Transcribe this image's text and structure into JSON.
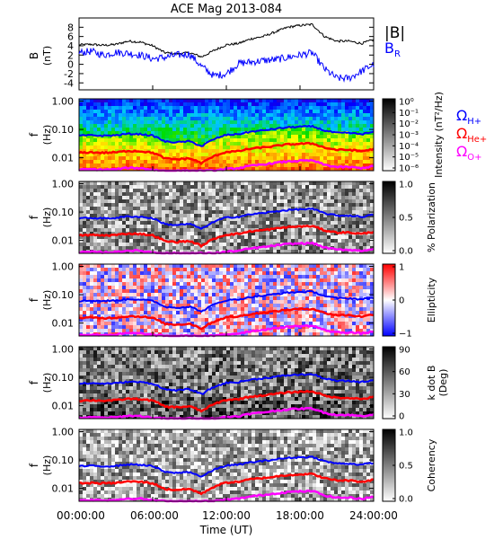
{
  "title": "ACE Mag 2013-084",
  "x_axis": {
    "label": "Time (UT)",
    "ticks": [
      "00:00:00",
      "06:00:00",
      "12:00:00",
      "18:00:00",
      "24:00:00"
    ],
    "range_hours": [
      0,
      24
    ]
  },
  "colors": {
    "b_total": "#000000",
    "b_r": "#0000ff",
    "h_plus": "#0000ff",
    "he_plus": "#ff0000",
    "o_plus": "#ff00ff"
  },
  "chart_data": [
    {
      "type": "line",
      "title": "ACE Mag 2013-084",
      "ylabel": "B",
      "yunit": "(nT)",
      "ylim": [
        -5.5,
        10
      ],
      "yticks": [
        "-4",
        "-2",
        "0",
        "2",
        "4",
        "6",
        "8"
      ],
      "x": [
        0,
        1,
        2,
        3,
        4,
        5,
        6,
        7,
        8,
        9,
        10,
        11,
        12,
        13,
        14,
        15,
        16,
        17,
        18,
        19,
        20,
        21,
        22,
        23,
        24
      ],
      "series": [
        {
          "name": "|B|",
          "values": [
            4.2,
            4.3,
            4.1,
            4.3,
            5.0,
            4.8,
            4.0,
            2.5,
            2.3,
            2.5,
            1.6,
            3.0,
            4.2,
            4.5,
            5.5,
            6.0,
            7.0,
            8.0,
            8.4,
            8.6,
            6.0,
            5.0,
            5.0,
            4.5,
            5.3
          ]
        },
        {
          "name": "B_R",
          "values": [
            2.5,
            2.8,
            2.0,
            2.6,
            2.4,
            2.0,
            1.2,
            1.5,
            2.0,
            2.2,
            -0.5,
            -2.5,
            -2.0,
            0.2,
            0.5,
            0.8,
            1.0,
            1.5,
            2.0,
            2.5,
            -1.0,
            -3.0,
            -3.0,
            -1.5,
            0.0
          ]
        }
      ],
      "legend": [
        "|B|",
        "B_R"
      ],
      "legend_placement": "right"
    },
    {
      "type": "heatmap",
      "ylabel": "f",
      "yunit": "(Hz)",
      "yticks": [
        "0.01",
        "0.10",
        "1.00"
      ],
      "colorbar_label": "Intensity (nT²/Hz)",
      "colorbar_ticks": [
        "10⁰",
        "10⁻¹",
        "10⁻²",
        "10⁻³",
        "10⁻⁴",
        "10⁻⁵",
        "10⁻⁶"
      ],
      "legend": [
        "Ω_H+",
        "Ω_He+",
        "Ω_O+"
      ]
    },
    {
      "type": "heatmap",
      "ylabel": "f",
      "yunit": "(Hz)",
      "yticks": [
        "0.01",
        "0.10",
        "1.00"
      ],
      "colorbar_label": "% Polarization",
      "colorbar_ticks": [
        "1.0",
        "0.5",
        "0.0"
      ]
    },
    {
      "type": "heatmap",
      "ylabel": "f",
      "yunit": "(Hz)",
      "yticks": [
        "0.01",
        "0.10",
        "1.00"
      ],
      "colorbar_label": "Ellipticity",
      "colorbar_ticks": [
        "1",
        "0",
        "−1"
      ]
    },
    {
      "type": "heatmap",
      "ylabel": "f",
      "yunit": "(Hz)",
      "yticks": [
        "0.01",
        "0.10",
        "1.00"
      ],
      "colorbar_label": "k dot B",
      "colorbar_unit": "(Deg)",
      "colorbar_ticks": [
        "90",
        "60",
        "30",
        "0"
      ]
    },
    {
      "type": "heatmap",
      "ylabel": "f",
      "yunit": "(Hz)",
      "yticks": [
        "0.01",
        "0.10",
        "1.00"
      ],
      "colorbar_label": "Coherency",
      "colorbar_ticks": [
        "1.0",
        "0.5",
        "0.0"
      ]
    }
  ],
  "gyrofrequency_lines": {
    "hours": [
      0,
      1,
      2,
      3,
      4,
      5,
      6,
      7,
      8,
      9,
      10,
      11,
      12,
      13,
      14,
      15,
      16,
      17,
      18,
      19,
      20,
      21,
      22,
      23,
      24
    ],
    "h_plus_hz": [
      0.06,
      0.062,
      0.06,
      0.062,
      0.07,
      0.068,
      0.06,
      0.037,
      0.035,
      0.038,
      0.025,
      0.045,
      0.064,
      0.068,
      0.083,
      0.092,
      0.105,
      0.118,
      0.125,
      0.128,
      0.09,
      0.075,
      0.075,
      0.068,
      0.08
    ],
    "he_plus_hz": [
      0.015,
      0.0155,
      0.015,
      0.0155,
      0.0175,
      0.017,
      0.015,
      0.0093,
      0.0088,
      0.0095,
      0.0063,
      0.0113,
      0.016,
      0.017,
      0.021,
      0.023,
      0.026,
      0.0295,
      0.031,
      0.032,
      0.0225,
      0.019,
      0.019,
      0.017,
      0.02
    ],
    "o_plus_hz": [
      0.0038,
      0.0039,
      0.0038,
      0.0039,
      0.0044,
      0.0043,
      0.0038,
      0.0035,
      0.0035,
      0.0035,
      0.0035,
      0.0035,
      0.004,
      0.0043,
      0.0052,
      0.0058,
      0.0066,
      0.0074,
      0.0078,
      0.008,
      0.0056,
      0.0047,
      0.0047,
      0.0043,
      0.005
    ]
  }
}
